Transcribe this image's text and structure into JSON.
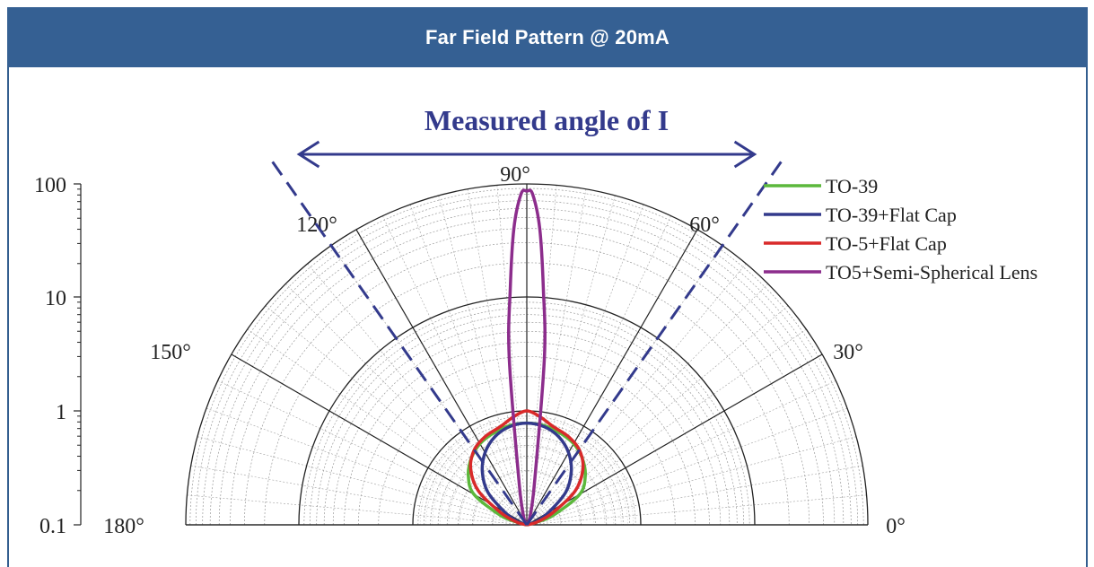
{
  "header": {
    "title": "Far Field Pattern @ 20mA"
  },
  "chart_data": {
    "type": "polar",
    "title": "Measured angle of I",
    "radial_axis": {
      "scale": "log",
      "range": [
        0.1,
        100
      ],
      "tick_labels": [
        "100",
        "10",
        "1",
        "0.1"
      ],
      "tick_values": [
        100,
        10,
        1,
        0.1
      ]
    },
    "angular_axis": {
      "range_deg": [
        0,
        180
      ],
      "tick_labels": [
        "0°",
        "30°",
        "60°",
        "90°",
        "120°",
        "150°",
        "180°"
      ],
      "tick_values": [
        0,
        30,
        60,
        90,
        120,
        150,
        180
      ]
    },
    "grid": true,
    "legend_position": "top-right",
    "series": [
      {
        "name": "TO-39",
        "color": "#5cb83c",
        "half_power_angle_deg": 60,
        "points": [
          [
            15,
            0.1
          ],
          [
            20,
            0.28
          ],
          [
            30,
            0.6
          ],
          [
            40,
            0.75
          ],
          [
            50,
            0.85
          ],
          [
            60,
            0.92
          ],
          [
            70,
            0.96
          ],
          [
            80,
            0.99
          ],
          [
            90,
            1.0
          ],
          [
            100,
            0.99
          ],
          [
            110,
            0.96
          ],
          [
            120,
            0.92
          ],
          [
            130,
            0.85
          ],
          [
            140,
            0.75
          ],
          [
            150,
            0.6
          ],
          [
            160,
            0.28
          ],
          [
            165,
            0.1
          ]
        ]
      },
      {
        "name": "TO-39+Flat Cap",
        "color": "#333a8c",
        "half_power_angle_deg": 45,
        "points": [
          [
            20,
            0.1
          ],
          [
            30,
            0.25
          ],
          [
            40,
            0.5
          ],
          [
            50,
            0.68
          ],
          [
            60,
            0.82
          ],
          [
            70,
            0.92
          ],
          [
            80,
            0.98
          ],
          [
            90,
            1.0
          ],
          [
            100,
            0.98
          ],
          [
            110,
            0.92
          ],
          [
            120,
            0.82
          ],
          [
            130,
            0.68
          ],
          [
            140,
            0.5
          ],
          [
            150,
            0.25
          ],
          [
            160,
            0.1
          ]
        ]
      },
      {
        "name": "TO-5+Flat  Cap",
        "color": "#d92a2a",
        "half_power_angle_deg": 55,
        "points": [
          [
            15,
            0.1
          ],
          [
            25,
            0.28
          ],
          [
            35,
            0.58
          ],
          [
            45,
            0.78
          ],
          [
            55,
            0.9
          ],
          [
            65,
            0.96
          ],
          [
            75,
            1.0
          ],
          [
            83,
            1.07
          ],
          [
            90,
            1.12
          ],
          [
            97,
            1.07
          ],
          [
            105,
            1.0
          ],
          [
            115,
            0.96
          ],
          [
            125,
            0.9
          ],
          [
            135,
            0.78
          ],
          [
            145,
            0.58
          ],
          [
            155,
            0.28
          ],
          [
            165,
            0.1
          ]
        ]
      },
      {
        "name": "TO5+Semi-Spherical Lens",
        "color": "#8c2d8c",
        "half_power_angle_deg": 10,
        "points": [
          [
            70,
            0.1
          ],
          [
            80,
            0.45
          ],
          [
            84,
            3
          ],
          [
            86,
            12
          ],
          [
            87.5,
            40
          ],
          [
            89,
            80
          ],
          [
            90,
            85
          ],
          [
            91,
            80
          ],
          [
            92.5,
            40
          ],
          [
            94,
            12
          ],
          [
            96,
            3
          ],
          [
            100,
            0.45
          ],
          [
            110,
            0.1
          ]
        ]
      }
    ],
    "annotation": {
      "text": "Measured angle of I",
      "angles_deg": [
        55,
        125
      ]
    }
  }
}
